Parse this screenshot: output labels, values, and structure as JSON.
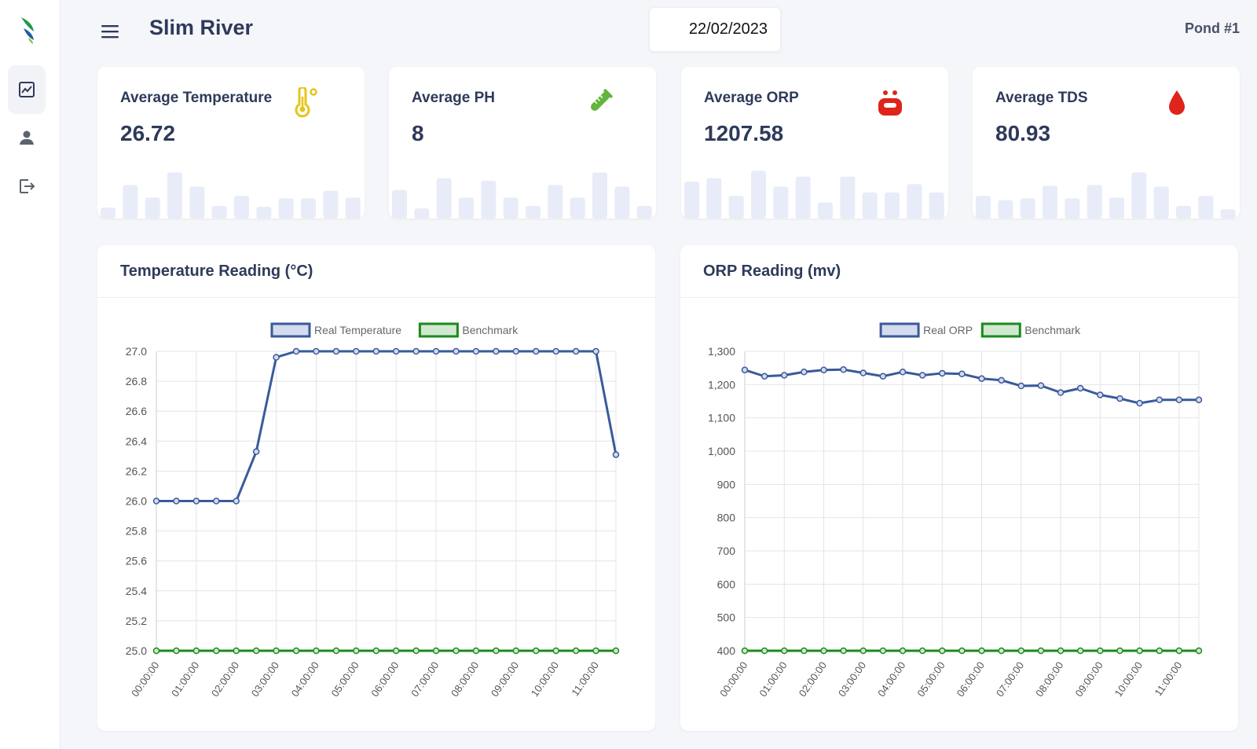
{
  "header": {
    "title": "Slim River",
    "date": "22/02/2023",
    "pond": "Pond #1"
  },
  "sidebar": {
    "items": [
      {
        "name": "dashboard",
        "icon": "chart-line-icon",
        "active": true
      },
      {
        "name": "users",
        "icon": "user-icon",
        "active": false
      },
      {
        "name": "logout",
        "icon": "logout-icon",
        "active": false
      }
    ]
  },
  "stats": [
    {
      "label": "Average Temperature",
      "value": "26.72",
      "icon": "thermometer-icon",
      "color": "#e3c61b",
      "spark": [
        13,
        40,
        25,
        55,
        38,
        15,
        27,
        14,
        24,
        24,
        33,
        25
      ]
    },
    {
      "label": "Average PH",
      "value": "8",
      "icon": "test-tube-icon",
      "color": "#64b53c",
      "spark": [
        34,
        12,
        48,
        25,
        45,
        25,
        15,
        40,
        25,
        55,
        38,
        15
      ]
    },
    {
      "label": "Average ORP",
      "value": "1207.58",
      "icon": "water-molecule-icon",
      "color": "#e0231b",
      "spark": [
        44,
        48,
        27,
        57,
        38,
        50,
        19,
        50,
        31,
        31,
        41,
        31
      ]
    },
    {
      "label": "Average TDS",
      "value": "80.93",
      "icon": "water-drop-icon",
      "color": "#e0231b",
      "spark": [
        27,
        22,
        24,
        39,
        24,
        40,
        25,
        55,
        38,
        15,
        27,
        11
      ]
    }
  ],
  "colors": {
    "series": "#3a5a9a",
    "benchmark": "#1b8a1b",
    "spark": "#e8ecf8",
    "grid": "#e4e4e4"
  },
  "chart_data": [
    {
      "type": "line",
      "title": "Temperature Reading (°C)",
      "x": [
        "00:00:00",
        "00:30:00",
        "01:00:00",
        "01:30:00",
        "02:00:00",
        "02:30:00",
        "03:00:00",
        "03:30:00",
        "04:00:00",
        "04:30:00",
        "05:00:00",
        "05:30:00",
        "06:00:00",
        "06:30:00",
        "07:00:00",
        "07:30:00",
        "08:00:00",
        "08:30:00",
        "09:00:00",
        "09:30:00",
        "10:00:00",
        "10:30:00",
        "11:00:00",
        "11:30:00"
      ],
      "xticks": [
        "00:00:00",
        "01:00:00",
        "02:00:00",
        "03:00:00",
        "04:00:00",
        "05:00:00",
        "06:00:00",
        "07:00:00",
        "08:00:00",
        "09:00:00",
        "10:00:00",
        "11:00:00"
      ],
      "ylim": [
        25.0,
        27.0
      ],
      "yticks": [
        "25.0",
        "25.2",
        "25.4",
        "25.6",
        "25.8",
        "26.0",
        "26.2",
        "26.4",
        "26.6",
        "26.8",
        "27.0"
      ],
      "ytick_values": [
        25.0,
        25.2,
        25.4,
        25.6,
        25.8,
        26.0,
        26.2,
        26.4,
        26.6,
        26.8,
        27.0
      ],
      "series": [
        {
          "name": "Real Temperature",
          "values": [
            26.0,
            26.0,
            26.0,
            26.0,
            26.0,
            26.33,
            26.96,
            27.0,
            27.0,
            27.0,
            27.0,
            27.0,
            27.0,
            27.0,
            27.0,
            27.0,
            27.0,
            27.0,
            27.0,
            27.0,
            27.0,
            27.0,
            27.0,
            26.31
          ]
        },
        {
          "name": "Benchmark",
          "values": [
            25,
            25,
            25,
            25,
            25,
            25,
            25,
            25,
            25,
            25,
            25,
            25,
            25,
            25,
            25,
            25,
            25,
            25,
            25,
            25,
            25,
            25,
            25,
            25
          ]
        }
      ]
    },
    {
      "type": "line",
      "title": "ORP Reading (mv)",
      "x": [
        "00:00:00",
        "00:30:00",
        "01:00:00",
        "01:30:00",
        "02:00:00",
        "02:30:00",
        "03:00:00",
        "03:30:00",
        "04:00:00",
        "04:30:00",
        "05:00:00",
        "05:30:00",
        "06:00:00",
        "06:30:00",
        "07:00:00",
        "07:30:00",
        "08:00:00",
        "08:30:00",
        "09:00:00",
        "09:30:00",
        "10:00:00",
        "10:30:00",
        "11:00:00",
        "11:30:00"
      ],
      "xticks": [
        "00:00:00",
        "01:00:00",
        "02:00:00",
        "03:00:00",
        "04:00:00",
        "05:00:00",
        "06:00:00",
        "07:00:00",
        "08:00:00",
        "09:00:00",
        "10:00:00",
        "11:00:00"
      ],
      "ylim": [
        400,
        1300
      ],
      "yticks": [
        "400",
        "500",
        "600",
        "700",
        "800",
        "900",
        "1,000",
        "1,100",
        "1,200",
        "1,300"
      ],
      "ytick_values": [
        400,
        500,
        600,
        700,
        800,
        900,
        1000,
        1100,
        1200,
        1300
      ],
      "series": [
        {
          "name": "Real ORP",
          "values": [
            1244,
            1225,
            1228,
            1238,
            1244,
            1245,
            1235,
            1225,
            1238,
            1228,
            1234,
            1232,
            1218,
            1213,
            1196,
            1197,
            1176,
            1189,
            1169,
            1158,
            1144,
            1154,
            1154,
            1154
          ]
        },
        {
          "name": "Benchmark",
          "values": [
            400,
            400,
            400,
            400,
            400,
            400,
            400,
            400,
            400,
            400,
            400,
            400,
            400,
            400,
            400,
            400,
            400,
            400,
            400,
            400,
            400,
            400,
            400,
            400
          ]
        }
      ]
    }
  ]
}
